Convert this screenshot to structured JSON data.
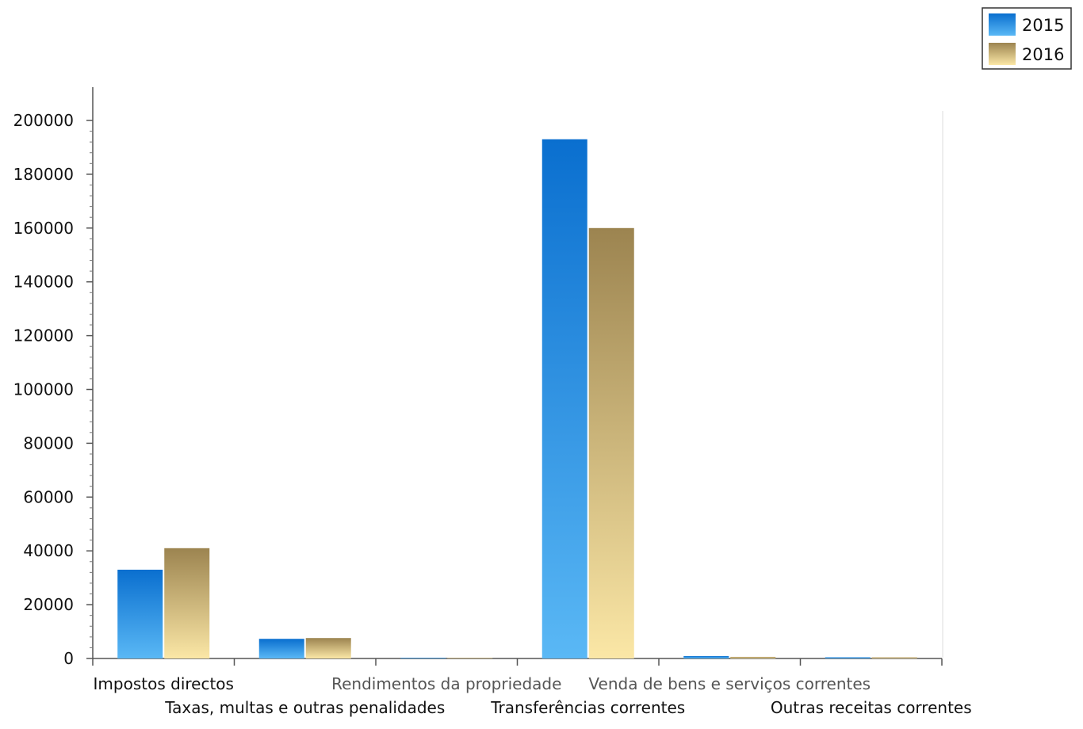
{
  "chart_data": {
    "type": "bar",
    "title": "",
    "xlabel": "",
    "ylabel": "",
    "ylim": [
      0,
      200000
    ],
    "yticks": [
      0,
      20000,
      40000,
      60000,
      80000,
      100000,
      120000,
      140000,
      160000,
      180000,
      200000
    ],
    "categories": [
      "Impostos directos",
      "Taxas, multas e outras penalidades",
      "Rendimentos da propriedade",
      "Transferências correntes",
      "Venda de bens e serviços correntes",
      "Outras receitas correntes"
    ],
    "series": [
      {
        "name": "2015",
        "values": [
          33000,
          7300,
          0,
          193000,
          900,
          100
        ]
      },
      {
        "name": "2016",
        "values": [
          41000,
          7600,
          0,
          160000,
          600,
          100
        ]
      }
    ],
    "grid": false,
    "legend": "top-right",
    "colors": {
      "2015_top": "#0a6fcf",
      "2015_bottom": "#5ab8f5",
      "2016_top": "#9c8450",
      "2016_bottom": "#fbe7a6"
    }
  }
}
